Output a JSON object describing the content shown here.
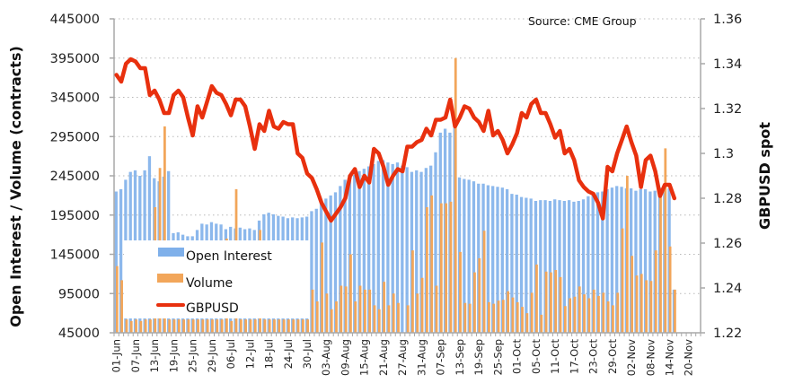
{
  "chart_data": {
    "type": "bar+line",
    "source_note": "Source: CME Group",
    "ylabel_left": "Open Interest / Volume (contracts)",
    "ylabel_right": "GBPUSD spot",
    "ylim_left": [
      45000,
      445000
    ],
    "yticks_left": [
      "45000",
      "95000",
      "145000",
      "195000",
      "245000",
      "295000",
      "345000",
      "395000",
      "445000"
    ],
    "ylim_right": [
      1.22,
      1.36
    ],
    "yticks_right": [
      "1.22",
      "1.24",
      "1.26",
      "1.28",
      "1.3",
      "1.32",
      "1.34",
      "1.36"
    ],
    "grid": "horizontal dotted",
    "legend_position": "bottom-left inside",
    "slots": 123,
    "x_tick_labels": [
      "01-Jun",
      "07-Jun",
      "13-Jun",
      "19-Jun",
      "25-Jun",
      "29-Jun",
      "06-Jul",
      "12-Jul",
      "18-Jul",
      "24-Jul",
      "30-Jul",
      "03-Aug",
      "09-Aug",
      "15-Aug",
      "21-Aug",
      "27-Aug",
      "31-Aug",
      "07-Sep",
      "13-Sep",
      "19-Sep",
      "25-Sep",
      "01-Oct",
      "05-Oct",
      "11-Oct",
      "17-Oct",
      "23-Oct",
      "29-Oct",
      "02-Nov",
      "08-Nov",
      "14-Nov",
      "20-Nov"
    ],
    "series": [
      {
        "name": "Open Interest",
        "type": "bar",
        "axis": "left",
        "color": "#7fb0ea",
        "values": [
          225000,
          228000,
          240000,
          250000,
          252000,
          245000,
          252000,
          270000,
          242000,
          238000,
          244000,
          251000,
          172000,
          173000,
          170000,
          168000,
          168000,
          176000,
          184000,
          183000,
          186000,
          184000,
          183000,
          177000,
          180000,
          178000,
          179000,
          177000,
          178000,
          176000,
          188000,
          196000,
          198000,
          196000,
          194000,
          193000,
          191000,
          192000,
          191000,
          192000,
          193000,
          200000,
          203000,
          212000,
          216000,
          220000,
          224000,
          232000,
          240000,
          244000,
          246000,
          251000,
          254000,
          257000,
          260000,
          264000,
          265000,
          262000,
          260000,
          262000,
          258000,
          256000,
          250000,
          252000,
          250000,
          255000,
          258000,
          275000,
          300000,
          305000,
          300000,
          306000,
          243000,
          241000,
          240000,
          238000,
          235000,
          235000,
          233000,
          232000,
          231000,
          230000,
          228000,
          222000,
          221000,
          218000,
          217000,
          216000,
          213000,
          214000,
          214000,
          213000,
          215000,
          214000,
          213000,
          214000,
          212000,
          213000,
          215000,
          219000,
          221000,
          224000,
          225000,
          228000,
          230000,
          232000,
          231000,
          229000,
          229000,
          226000,
          228000,
          228000,
          225000,
          226000,
          230000,
          228000,
          229000,
          100000
        ],
        "values_note": "approx, read from bar heights"
      },
      {
        "name": "Volume",
        "type": "bar",
        "axis": "left",
        "color": "#f2a65a",
        "values": [
          130000,
          112000,
          62000,
          60000,
          62000,
          60000,
          62000,
          62000,
          205000,
          255000,
          308000,
          62000,
          62000,
          62000,
          62000,
          62000,
          62000,
          62000,
          62000,
          62000,
          62000,
          62000,
          62000,
          165000,
          60000,
          228000,
          62000,
          62000,
          62000,
          62000,
          176000,
          62000,
          62000,
          62000,
          62000,
          62000,
          62000,
          62000,
          62000,
          62000,
          62000,
          100000,
          85000,
          160000,
          95000,
          75000,
          85000,
          105000,
          104000,
          145000,
          85000,
          105000,
          100000,
          100000,
          80000,
          75000,
          110000,
          80000,
          95000,
          83000,
          45000,
          80000,
          150000,
          95000,
          115000,
          205000,
          220000,
          105000,
          210000,
          210000,
          212000,
          395000,
          148000,
          83000,
          82000,
          122000,
          140000,
          175000,
          84000,
          82000,
          86000,
          87000,
          98000,
          90000,
          84000,
          78000,
          70000,
          96000,
          132000,
          68000,
          123000,
          122000,
          125000,
          116000,
          79000,
          89000,
          91000,
          104000,
          94000,
          89000,
          100000,
          92000,
          96000,
          85000,
          80000,
          96000,
          178000,
          245000,
          143000,
          118000,
          120000,
          112000,
          111000,
          150000,
          220000,
          280000,
          155000,
          100000
        ],
        "values_note": "approx, read from bar heights"
      },
      {
        "name": "GBPUSD",
        "type": "line",
        "axis": "right",
        "color": "#e8300e",
        "values": [
          1.335,
          1.332,
          1.34,
          1.342,
          1.341,
          1.338,
          1.338,
          1.326,
          1.328,
          1.324,
          1.318,
          1.318,
          1.326,
          1.328,
          1.325,
          1.316,
          1.308,
          1.321,
          1.316,
          1.323,
          1.33,
          1.327,
          1.326,
          1.322,
          1.317,
          1.324,
          1.324,
          1.321,
          1.312,
          1.302,
          1.313,
          1.31,
          1.319,
          1.312,
          1.311,
          1.314,
          1.313,
          1.313,
          1.3,
          1.298,
          1.291,
          1.289,
          1.284,
          1.278,
          1.274,
          1.27,
          1.273,
          1.276,
          1.28,
          1.29,
          1.293,
          1.285,
          1.29,
          1.287,
          1.302,
          1.3,
          1.294,
          1.286,
          1.29,
          1.293,
          1.292,
          1.303,
          1.303,
          1.305,
          1.306,
          1.311,
          1.308,
          1.315,
          1.315,
          1.316,
          1.324,
          1.312,
          1.316,
          1.321,
          1.32,
          1.316,
          1.314,
          1.31,
          1.319,
          1.308,
          1.31,
          1.306,
          1.3,
          1.304,
          1.309,
          1.318,
          1.316,
          1.322,
          1.324,
          1.318,
          1.318,
          1.313,
          1.307,
          1.31,
          1.3,
          1.302,
          1.297,
          1.288,
          1.285,
          1.283,
          1.282,
          1.278,
          1.271,
          1.294,
          1.292,
          1.3,
          1.306,
          1.312,
          1.305,
          1.299,
          1.285,
          1.297,
          1.299,
          1.292,
          1.281,
          1.286,
          1.286,
          1.28
        ]
      }
    ]
  },
  "legend": {
    "items": [
      "Open Interest",
      "Volume",
      "GBPUSD"
    ]
  }
}
